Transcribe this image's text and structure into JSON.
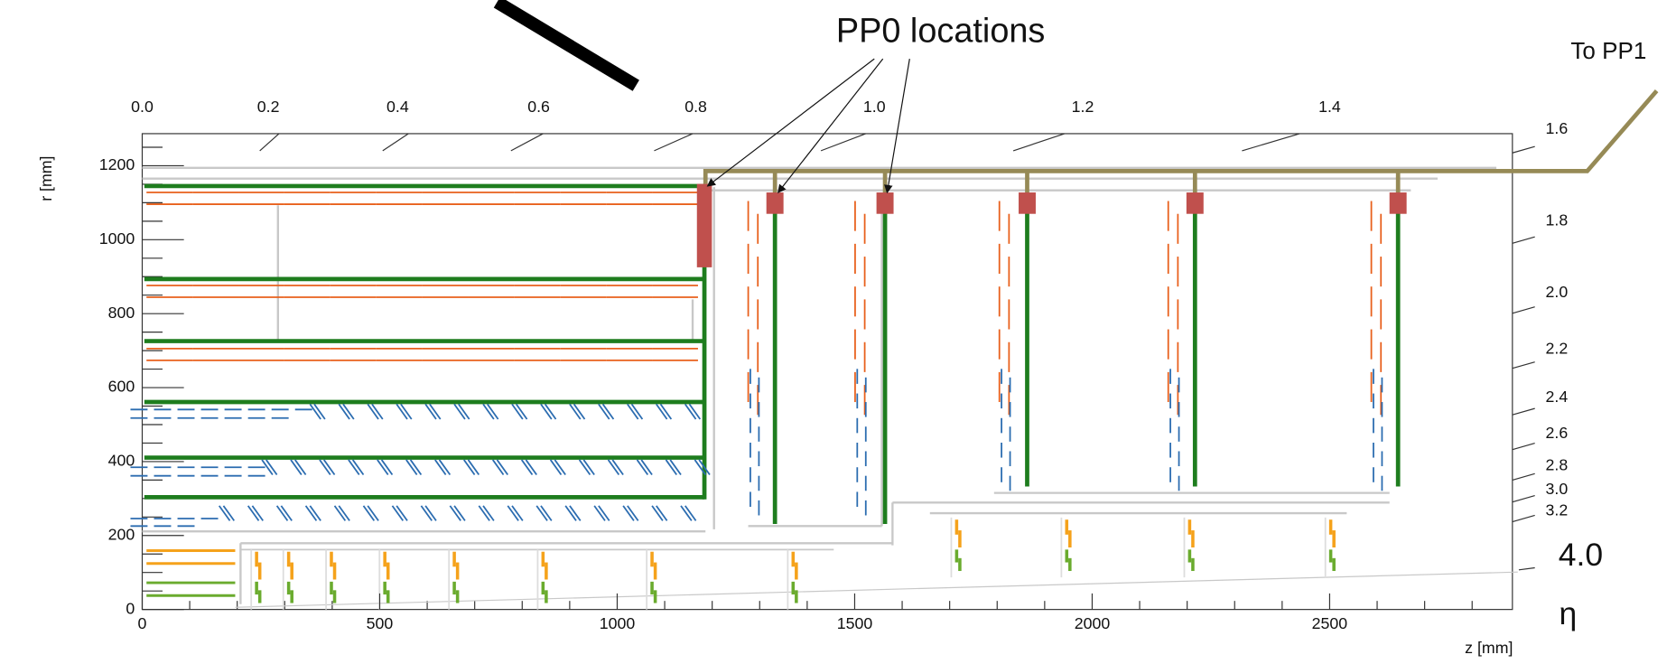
{
  "annotations": {
    "pp0": "PP0 locations",
    "pp1": "To PP1"
  },
  "axes": {
    "x_label": "z [mm]",
    "y_label": "r [mm]",
    "eta_symbol": "η",
    "x_ticks": [
      0,
      500,
      1000,
      1500,
      2000,
      2500
    ],
    "y_ticks": [
      0,
      200,
      400,
      600,
      800,
      1000,
      1200
    ],
    "eta_top": [
      "0.0",
      "0.2",
      "0.4",
      "0.6",
      "0.8",
      "1.0",
      "1.2",
      "1.4"
    ],
    "eta_right": [
      "1.6",
      "1.8",
      "2.0",
      "2.2",
      "2.4",
      "2.6",
      "2.8",
      "3.0",
      "3.2"
    ],
    "eta_big": "4.0"
  }
}
